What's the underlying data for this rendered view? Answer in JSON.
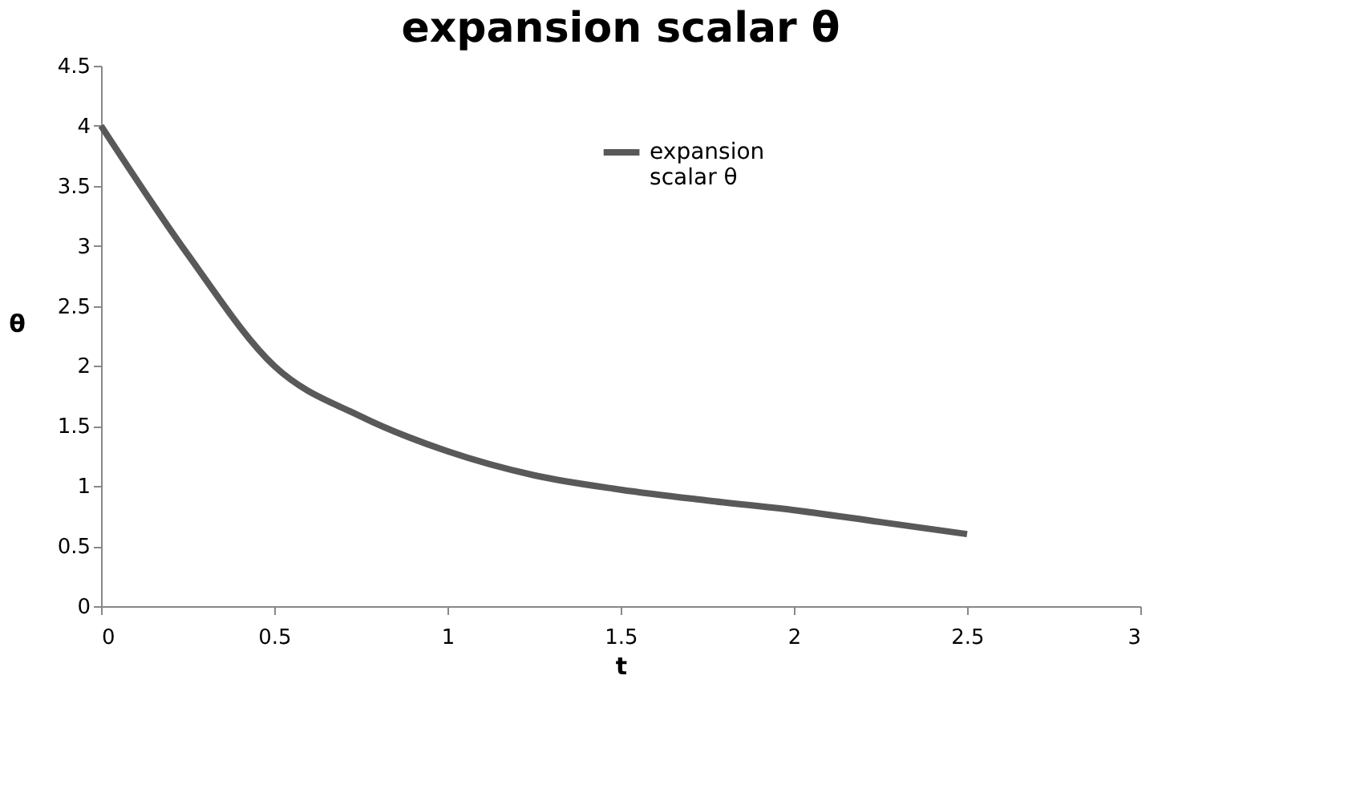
{
  "chart_data": {
    "type": "line",
    "title": "expansion scalar θ",
    "xlabel": "t",
    "ylabel": "θ",
    "x": [
      0,
      0.25,
      0.5,
      0.75,
      1,
      1.25,
      1.5,
      1.75,
      2,
      2.25,
      2.5
    ],
    "series": [
      {
        "name": "expansion scalar θ",
        "color": "#595959",
        "values": [
          4.0,
          2.93,
          2.0,
          1.58,
          1.29,
          1.09,
          0.97,
          0.88,
          0.8,
          0.7,
          0.6
        ]
      }
    ],
    "xlim": [
      0,
      3
    ],
    "xticks": [
      0,
      0.5,
      1,
      1.5,
      2,
      2.5,
      3
    ],
    "ylim": [
      0,
      4.5
    ],
    "yticks": [
      0,
      0.5,
      1,
      1.5,
      2,
      2.5,
      3,
      3.5,
      4,
      4.5
    ],
    "grid": false,
    "legend": "top right",
    "marker": "none",
    "line_style": "solid"
  }
}
